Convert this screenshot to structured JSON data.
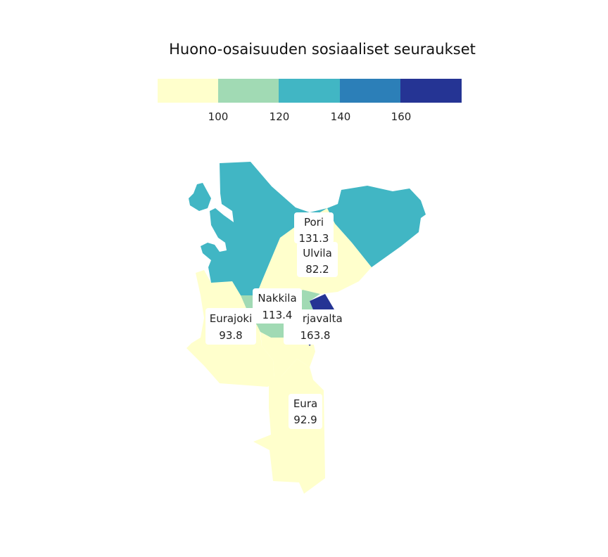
{
  "title": "Huono-osaisuuden sosiaaliset seuraukset",
  "legend": {
    "ticks": [
      "100",
      "120",
      "140",
      "160"
    ],
    "bins": [
      {
        "range": "< 100",
        "color": "#ffffcc"
      },
      {
        "range": "100–120",
        "color": "#a1dab4"
      },
      {
        "range": "120–140",
        "color": "#41b6c4"
      },
      {
        "range": "140–160",
        "color": "#2c7fb8"
      },
      {
        "range": "> 160",
        "color": "#253494"
      }
    ]
  },
  "regions": [
    {
      "name": "Pori",
      "value": "131.3",
      "color": "#41b6c4"
    },
    {
      "name": "Ulvila",
      "value": "82.2",
      "color": "#ffffcc"
    },
    {
      "name": "Nakkila",
      "value": "113.4",
      "color": "#a1dab4"
    },
    {
      "name": "Harjavalta",
      "value": "163.8",
      "color": "#253494"
    },
    {
      "name": "Eurajoki",
      "value": "93.8",
      "color": "#ffffcc"
    },
    {
      "name": "Eura",
      "value": "92.9",
      "color": "#ffffcc"
    }
  ]
}
